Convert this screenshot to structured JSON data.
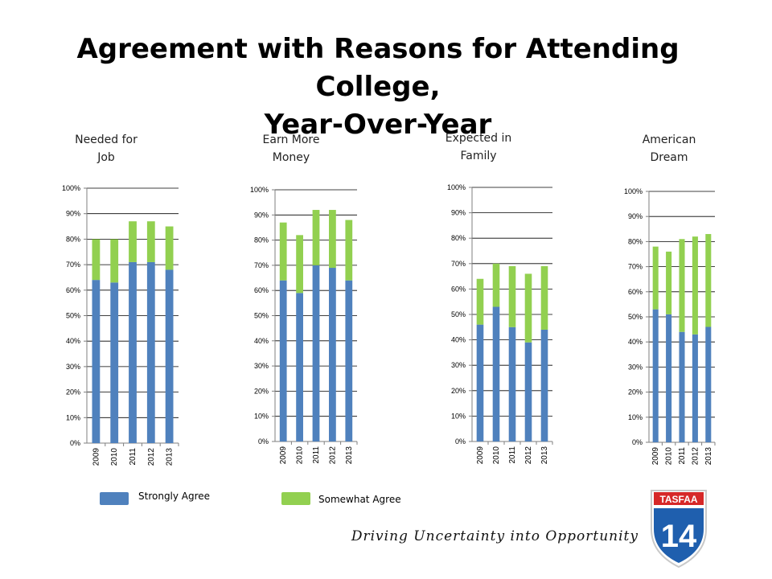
{
  "title_line1": "Agreement with Reasons for Attending College,",
  "title_line2": "Year-Over-Year",
  "colors": {
    "strongly": "#4f81bd",
    "somewhat": "#92d050",
    "axis": "#7f7f7f",
    "grid": "#000000"
  },
  "chart_data": [
    {
      "type": "bar",
      "stacked": true,
      "title": [
        "Needed for",
        "Job"
      ],
      "categories": [
        "2009",
        "2010",
        "2011",
        "2012",
        "2013"
      ],
      "ylim": [
        0,
        100
      ],
      "yticks": [
        "0%",
        "10%",
        "20%",
        "30%",
        "40%",
        "50%",
        "60%",
        "70%",
        "80%",
        "90%",
        "100%"
      ],
      "series": [
        {
          "name": "Strongly Agree",
          "values": [
            64,
            63,
            71,
            71,
            68
          ]
        },
        {
          "name": "Somewhat Agree",
          "values": [
            16,
            17,
            16,
            16,
            17
          ]
        }
      ]
    },
    {
      "type": "bar",
      "stacked": true,
      "title": [
        "Earn More",
        "Money"
      ],
      "categories": [
        "2009",
        "2010",
        "2011",
        "2012",
        "2013"
      ],
      "ylim": [
        0,
        100
      ],
      "yticks": [
        "0%",
        "10%",
        "20%",
        "30%",
        "40%",
        "50%",
        "60%",
        "70%",
        "80%",
        "90%",
        "100%"
      ],
      "series": [
        {
          "name": "Strongly Agree",
          "values": [
            64,
            59,
            70,
            69,
            64
          ]
        },
        {
          "name": "Somewhat Agree",
          "values": [
            23,
            23,
            22,
            23,
            24
          ]
        }
      ]
    },
    {
      "type": "bar",
      "stacked": true,
      "title": [
        "Expected in",
        "Family"
      ],
      "categories": [
        "2009",
        "2010",
        "2011",
        "2012",
        "2013"
      ],
      "ylim": [
        0,
        100
      ],
      "yticks": [
        "0%",
        "10%",
        "20%",
        "30%",
        "40%",
        "50%",
        "60%",
        "70%",
        "80%",
        "90%",
        "100%"
      ],
      "series": [
        {
          "name": "Strongly Agree",
          "values": [
            46,
            53,
            45,
            39,
            44
          ]
        },
        {
          "name": "Somewhat Agree",
          "values": [
            18,
            17,
            24,
            27,
            25
          ]
        }
      ]
    },
    {
      "type": "bar",
      "stacked": true,
      "title": [
        "American",
        "Dream"
      ],
      "categories": [
        "2009",
        "2010",
        "2011",
        "2012",
        "2013"
      ],
      "ylim": [
        0,
        100
      ],
      "yticks": [
        "0%",
        "10%",
        "20%",
        "30%",
        "40%",
        "50%",
        "60%",
        "70%",
        "80%",
        "90%",
        "100%"
      ],
      "series": [
        {
          "name": "Strongly Agree",
          "values": [
            53,
            51,
            44,
            43,
            46
          ]
        },
        {
          "name": "Somewhat Agree",
          "values": [
            25,
            25,
            37,
            39,
            37
          ]
        }
      ]
    }
  ],
  "legend": {
    "strongly": "Strongly Agree",
    "somewhat": "Somewhat Agree"
  },
  "tagline": "Driving Uncertainty into Opportunity",
  "logo": {
    "top_text": "TASFAA",
    "number": "14"
  }
}
